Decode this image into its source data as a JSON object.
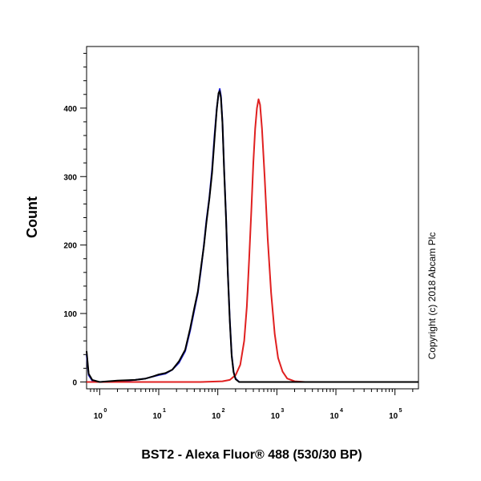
{
  "chart_data": {
    "type": "line",
    "title": "",
    "xlabel": "BST2 - Alexa Fluor® 488 (530/30 BP)",
    "ylabel": "Count",
    "x_scale": "log",
    "xlim": [
      0.6,
      250000
    ],
    "ylim": [
      -10,
      490
    ],
    "x_ticks": [
      {
        "base": "10",
        "exp": "0"
      },
      {
        "base": "10",
        "exp": "1"
      },
      {
        "base": "10",
        "exp": "2"
      },
      {
        "base": "10",
        "exp": "3"
      },
      {
        "base": "10",
        "exp": "4"
      },
      {
        "base": "10",
        "exp": "5"
      }
    ],
    "y_ticks": [
      "0",
      "100",
      "200",
      "300",
      "400"
    ],
    "grid": false,
    "copyright": "Copyright (c) 2018 Abcam Plc",
    "series": [
      {
        "color": "#2222dd",
        "points": [
          [
            0.6,
            40
          ],
          [
            0.65,
            10
          ],
          [
            0.75,
            2
          ],
          [
            1,
            0
          ],
          [
            2,
            1
          ],
          [
            4,
            3
          ],
          [
            6,
            5
          ],
          [
            8,
            8
          ],
          [
            10,
            10
          ],
          [
            13,
            12
          ],
          [
            17,
            18
          ],
          [
            22,
            28
          ],
          [
            28,
            45
          ],
          [
            34,
            75
          ],
          [
            40,
            105
          ],
          [
            46,
            130
          ],
          [
            52,
            165
          ],
          [
            58,
            200
          ],
          [
            64,
            235
          ],
          [
            72,
            270
          ],
          [
            80,
            310
          ],
          [
            88,
            360
          ],
          [
            96,
            400
          ],
          [
            103,
            420
          ],
          [
            108,
            428
          ],
          [
            113,
            418
          ],
          [
            120,
            380
          ],
          [
            128,
            310
          ],
          [
            138,
            240
          ],
          [
            148,
            160
          ],
          [
            160,
            90
          ],
          [
            172,
            40
          ],
          [
            185,
            15
          ],
          [
            200,
            5
          ],
          [
            230,
            0
          ],
          [
            300,
            0
          ],
          [
            250000,
            0
          ]
        ]
      },
      {
        "color": "#e02020",
        "points": [
          [
            0.6,
            0
          ],
          [
            50,
            0
          ],
          [
            120,
            1
          ],
          [
            160,
            3
          ],
          [
            200,
            10
          ],
          [
            240,
            25
          ],
          [
            280,
            60
          ],
          [
            310,
            110
          ],
          [
            340,
            180
          ],
          [
            370,
            250
          ],
          [
            400,
            320
          ],
          [
            430,
            370
          ],
          [
            460,
            400
          ],
          [
            490,
            413
          ],
          [
            520,
            405
          ],
          [
            560,
            370
          ],
          [
            620,
            300
          ],
          [
            700,
            210
          ],
          [
            800,
            130
          ],
          [
            920,
            70
          ],
          [
            1050,
            35
          ],
          [
            1250,
            15
          ],
          [
            1500,
            5
          ],
          [
            2000,
            1
          ],
          [
            3000,
            0
          ],
          [
            250000,
            0
          ]
        ]
      },
      {
        "color": "#000000",
        "points": [
          [
            0.6,
            45
          ],
          [
            0.65,
            12
          ],
          [
            0.75,
            3
          ],
          [
            1,
            0
          ],
          [
            2,
            2
          ],
          [
            4,
            3
          ],
          [
            6,
            5
          ],
          [
            8,
            8
          ],
          [
            10,
            11
          ],
          [
            13,
            13
          ],
          [
            17,
            18
          ],
          [
            22,
            30
          ],
          [
            28,
            47
          ],
          [
            34,
            78
          ],
          [
            40,
            108
          ],
          [
            46,
            132
          ],
          [
            52,
            168
          ],
          [
            58,
            198
          ],
          [
            64,
            232
          ],
          [
            72,
            268
          ],
          [
            80,
            305
          ],
          [
            88,
            355
          ],
          [
            96,
            398
          ],
          [
            103,
            422
          ],
          [
            108,
            425
          ],
          [
            113,
            415
          ],
          [
            120,
            378
          ],
          [
            128,
            308
          ],
          [
            138,
            238
          ],
          [
            148,
            158
          ],
          [
            160,
            88
          ],
          [
            172,
            38
          ],
          [
            185,
            14
          ],
          [
            200,
            4
          ],
          [
            230,
            0
          ],
          [
            300,
            0
          ],
          [
            250000,
            0
          ]
        ]
      }
    ]
  }
}
